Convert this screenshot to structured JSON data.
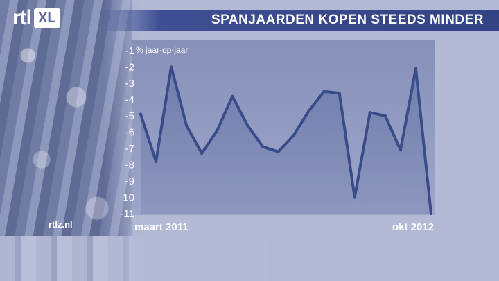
{
  "header": {
    "logo_text": "rtl",
    "logo_badge": "XL",
    "title": "SPANJAARDEN KOPEN STEEDS MINDER"
  },
  "credit": "rtlz.nl",
  "colors": {
    "title_bar": "#3a4a8e",
    "line": "#3a4b8a",
    "area_fill": "#5a6aa0",
    "plot_bg": "#8e97bd",
    "text": "#ffffff"
  },
  "chart_data": {
    "type": "area",
    "title": "SPANJAARDEN KOPEN STEEDS MINDER",
    "ylabel": "% jaar-op-jaar",
    "xlabel": "",
    "x_start_label": "maart 2011",
    "x_end_label": "okt 2012",
    "y_ticks": [
      "-1",
      "-2",
      "-3",
      "-4",
      "-5",
      "-6",
      "-7",
      "-8",
      "-9",
      "-10",
      "-11"
    ],
    "ylim": [
      -11,
      -1
    ],
    "grid": false,
    "series": [
      {
        "values": [
          -4.9,
          -7.8,
          -2.0,
          -5.6,
          -7.3,
          -5.9,
          -3.8,
          -5.6,
          -6.9,
          -7.2,
          -6.2,
          -4.7,
          -3.5,
          -3.6,
          -10.0,
          -4.8,
          -5.0,
          -7.1,
          -2.1,
          -11.0
        ]
      }
    ]
  }
}
